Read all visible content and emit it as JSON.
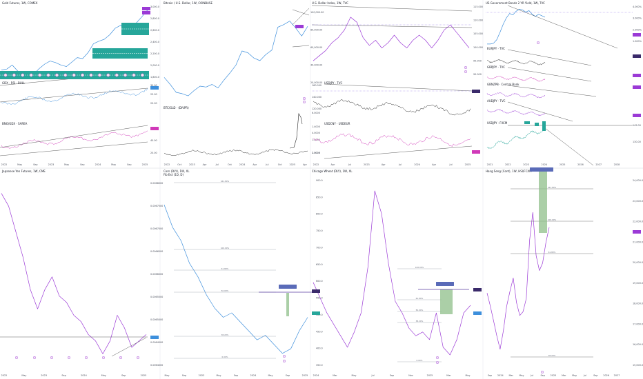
{
  "colors": {
    "purple": "#9b3ad6",
    "blue": "#3d8fdc",
    "teal": "#26a69a",
    "magenta": "#d038b8",
    "black": "#222222",
    "green_box": "#8fbf8a",
    "badge": "#5a6bb8",
    "grid": "#bfc3cc"
  },
  "chart_data": [
    {
      "type": "line",
      "title": "Gold Futures, 1W, COMEX",
      "x_ticks": [
        "2022",
        "May",
        "Sep",
        "2023",
        "May",
        "Sep",
        "2024",
        "May",
        "Sep",
        "2025"
      ],
      "y_ticks": [
        "3,000.0",
        "2,800.0",
        "2,600.0",
        "2,400.0",
        "2,200.0",
        "2,000.0",
        "1,800.0"
      ],
      "ylim": [
        1600,
        3100
      ],
      "series": [
        {
          "values": [
            1800,
            1820,
            1900,
            1780,
            1700,
            1650,
            1720,
            1830,
            1920,
            1980,
            1950,
            1900,
            1870,
            1960,
            2050,
            2030,
            2150,
            2330,
            2380,
            2420,
            2510,
            2640,
            2700,
            2610,
            2660,
            2760,
            2880,
            3010
          ]
        }
      ],
      "sub_panels": [
        {
          "title": "GDX · RSI · BULL",
          "y_ticks": [
            "30.00",
            "25.00",
            "20.00"
          ]
        },
        {
          "title": "BNO/GDX · SAREA",
          "y_ticks": [
            "60.00",
            "40.00",
            "20.00"
          ]
        }
      ]
    },
    {
      "type": "line",
      "title": "Bitcoin / U.S. Dollar, 1W, COINBASE",
      "x_ticks": [
        "2022",
        "Oct",
        "2023",
        "Apr",
        "Jul",
        "Oct",
        "2024",
        "Apr",
        "Jul",
        "Oct",
        "2025",
        "Apr"
      ],
      "y_ticks": [
        "100,000.00",
        "80,000.00",
        "60,000.00",
        "40,000.00",
        "20,000.00"
      ],
      "ylim": [
        10000,
        115000
      ],
      "series": [
        {
          "values": [
            38000,
            30000,
            21000,
            19500,
            17000,
            23000,
            28000,
            27000,
            30000,
            26000,
            35000,
            43000,
            52000,
            68000,
            66000,
            60000,
            57000,
            64000,
            69000,
            95000,
            98000,
            102000,
            94000,
            85000,
            96000
          ]
        }
      ],
      "sub_panels": [
        {
          "title": "BTC/GLD · (DIVPR)",
          "y_ticks": [
            "6.0000",
            "4.0000",
            "2.0000"
          ]
        }
      ]
    },
    {
      "type": "line",
      "title": "U.S. Dollar Index, 1W, TVC",
      "x_ticks": [
        "2022",
        "Apr",
        "Jul",
        "2023",
        "Apr",
        "Jul",
        "2024",
        "Apr",
        "Jul",
        "2025"
      ],
      "y_ticks": [
        "115.000",
        "110.000",
        "105.000",
        "100.000",
        "95.000",
        "90.000"
      ],
      "ylim": [
        88,
        117
      ],
      "series": [
        {
          "values": [
            96,
            98,
            100,
            103,
            105,
            108,
            113,
            111,
            105,
            102,
            104,
            101,
            103,
            106,
            103,
            101,
            104,
            106,
            104,
            101,
            104,
            108,
            110,
            107,
            104,
            101
          ]
        }
      ],
      "sub_panels": [
        {
          "title": "USDJPY · TVC",
          "y_ticks": [
            "160.000",
            "140.000",
            "120.000"
          ]
        },
        {
          "title": "USDCNY · USDEUR",
          "y_ticks": [
            "1.4000",
            "1.2000",
            "1.0000"
          ]
        }
      ]
    },
    {
      "type": "line",
      "title": "US Government Bonds 2 YR Yield, 1W, TVC",
      "x_ticks": [
        "2021",
        "2022",
        "2023",
        "2024",
        "2025",
        "2026",
        "2027",
        "2028"
      ],
      "y_ticks": [
        "4.000%",
        "3.000%",
        "2.000%",
        "1.000%"
      ],
      "ylim": [
        0,
        5.5
      ],
      "series": [
        {
          "values": [
            0.2,
            0.2,
            0.3,
            0.8,
            1.8,
            2.9,
            3.8,
            4.4,
            4.2,
            4.7,
            5.0,
            4.9,
            4.6,
            4.8,
            4.3,
            4.0,
            4.3,
            4.1,
            3.9
          ]
        }
      ],
      "sub_panels": [
        {
          "title": "EURJPY · TVC",
          "y_ticks": []
        },
        {
          "title": "GBPJPY · TVC",
          "y_ticks": []
        },
        {
          "title": "GBNZPB · Central Bank",
          "y_ticks": []
        },
        {
          "title": "AUDJPY · TVC",
          "y_ticks": []
        },
        {
          "title": "USDJPY · FXCM",
          "y_ticks": [
            "145.00",
            "130.00"
          ]
        }
      ]
    },
    {
      "type": "line",
      "title": "Japanese Yen Futures, 1W, CME",
      "x_ticks": [
        "2022",
        "May",
        "2023",
        "Sep",
        "2024",
        "May",
        "Sep",
        "2025"
      ],
      "y_ticks": [],
      "series": [
        {
          "values": [
            0.0089,
            0.0087,
            0.0083,
            0.0079,
            0.0074,
            0.0071,
            0.0074,
            0.0076,
            0.0073,
            0.0072,
            0.007,
            0.0069,
            0.0067,
            0.0066,
            0.0064,
            0.0066,
            0.007,
            0.0068,
            0.0065,
            0.0066,
            0.0067
          ]
        }
      ]
    },
    {
      "type": "line",
      "title": "Corn (DLY), 1W, XL",
      "subtitle": "Fib Ext (1D, D)",
      "x_ticks": [
        "May",
        "Sep",
        "2023",
        "May",
        "Sep",
        "2024",
        "May",
        "Sep",
        "2025"
      ],
      "y_ticks": [
        "0.0068000",
        "0.0067500",
        "0.0067000",
        "0.0066500",
        "0.0066000",
        "0.0065500",
        "0.0065000",
        "0.0064500",
        "0.0064000"
      ],
      "fib_levels": [
        "161.80%",
        "100.00%",
        "61.80%",
        "50.00%",
        "38.20%",
        "0.00%"
      ],
      "series": [
        {
          "values": [
            0.0068,
            0.00675,
            0.00672,
            0.00667,
            0.00664,
            0.0066,
            0.00657,
            0.00655,
            0.00656,
            0.00654,
            0.00652,
            0.0065,
            0.00651,
            0.00649,
            0.00647,
            0.00648,
            0.00652,
            0.00655
          ]
        }
      ]
    },
    {
      "type": "line",
      "title": "Chicago Wheat (DLY), 1W, XL",
      "x_ticks": [
        "2024",
        "Mar",
        "May",
        "Jul",
        "Sep",
        "Nov",
        "2025",
        "Mar",
        "May"
      ],
      "y_ticks": [
        "900.0",
        "850.0",
        "800.0",
        "750.0",
        "700.0",
        "650.0",
        "600.0",
        "550.0",
        "500.0",
        "450.0",
        "400.0",
        "350.0"
      ],
      "fib_levels": [
        "100.00%",
        "61.80%",
        "50.00%",
        "38.20%",
        "0.00%"
      ],
      "series": [
        {
          "values": [
            600,
            560,
            520,
            490,
            460,
            430,
            470,
            520,
            640,
            840,
            780,
            650,
            550,
            520,
            480,
            460,
            470,
            450,
            520,
            430,
            410,
            450,
            520,
            540
          ]
        }
      ]
    },
    {
      "type": "line",
      "title": "Hang Seng (Cont), 1W, HSI/FCXM",
      "x_ticks": [
        "Sep",
        "2024",
        "Mar",
        "May",
        "Jul",
        "Sep",
        "2025",
        "Mar",
        "May",
        "Jul",
        "Sep",
        "2026",
        "2027"
      ],
      "y_ticks": [
        "24,000.00",
        "23,000.00",
        "22,000.00",
        "21,000.00",
        "20,000.00",
        "19,000.00",
        "18,000.00",
        "17,000.00",
        "16,000.00",
        "15,000.00"
      ],
      "ylim": [
        14500,
        24500
      ],
      "fib_levels": [
        "161.80%",
        "100.00%",
        "61.80%",
        "38.20%"
      ],
      "series": [
        {
          "values": [
            18500,
            17800,
            17000,
            16200,
            15500,
            16500,
            17800,
            18600,
            19300,
            18000,
            17300,
            17500,
            18200,
            21300,
            22800,
            20500,
            19700,
            20100,
            21200,
            22000
          ]
        }
      ]
    }
  ]
}
